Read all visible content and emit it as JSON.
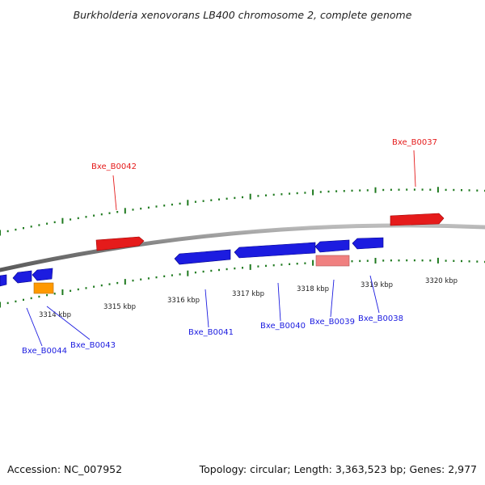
{
  "title": "Burkholderia xenovorans LB400 chromosome 2, complete genome",
  "footer": {
    "accession": "Accession: NC_007952",
    "summary": "Topology: circular; Length: 3,363,523 bp; Genes: 2,977"
  },
  "colors": {
    "backbone": "#8a8a8a",
    "tick": "#1f7a1f",
    "forward_gene": "#e51b1b",
    "reverse_gene": "#1c1ce0",
    "highlight_forward": "#f08080",
    "highlight_reverse": "#ff9900"
  },
  "ruler": {
    "labels": [
      "3314 kbp",
      "3315 kbp",
      "3316 kbp",
      "3317 kbp",
      "3318 kbp",
      "3319 kbp",
      "3320 kbp"
    ]
  },
  "genes": [
    {
      "label": "Bxe_B0037",
      "strand": "forward"
    },
    {
      "label": "Bxe_B0042",
      "strand": "forward"
    },
    {
      "label": "Bxe_B0041",
      "strand": "reverse"
    },
    {
      "label": "Bxe_B0040",
      "strand": "reverse"
    },
    {
      "label": "Bxe_B0039",
      "strand": "reverse"
    },
    {
      "label": "Bxe_B0038",
      "strand": "reverse"
    },
    {
      "label": "Bxe_B0044",
      "strand": "reverse"
    },
    {
      "label": "Bxe_B0043",
      "strand": "reverse"
    }
  ]
}
